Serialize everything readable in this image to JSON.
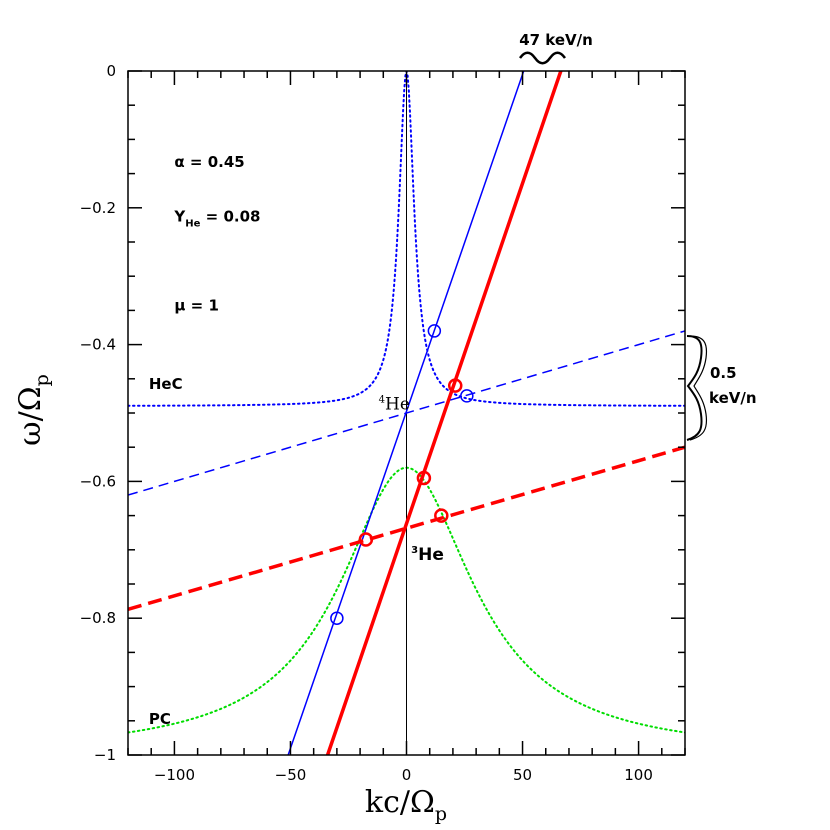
{
  "chart_data": {
    "type": "line",
    "title": "",
    "xlabel": "kc/Ω",
    "xlabel_sub": "p",
    "ylabel": "ω/Ω",
    "ylabel_sub": "p",
    "xlim": [
      -120,
      120
    ],
    "ylim": [
      -1,
      0
    ],
    "x_ticks": [
      -100,
      -50,
      0,
      50,
      100
    ],
    "x_tick_labels": [
      "−100",
      "−50",
      "0",
      "50",
      "100"
    ],
    "y_ticks": [
      0,
      -0.2,
      -0.4,
      -0.6,
      -0.8,
      -1
    ],
    "y_tick_labels": [
      "0",
      "−0.2",
      "−0.4",
      "−0.6",
      "−0.8",
      "−1"
    ],
    "grid": false,
    "dispersion_curves": [
      {
        "label": "HeC",
        "color": "#0000ff",
        "style": "dotted",
        "asymptote": -0.49,
        "peak": 0,
        "width": 4
      },
      {
        "label": "PC",
        "color": "#00dd00",
        "style": "dotted",
        "asymptote": -1.0,
        "peak": -0.58,
        "width": 35
      }
    ],
    "resonance_lines": [
      {
        "ion": "4He",
        "color": "#0000ff",
        "dash": "solid",
        "width": 1.5,
        "x": [
          -51,
          50.5
        ],
        "y": [
          -1.0,
          0.0
        ]
      },
      {
        "ion": "3He",
        "color": "#ff0000",
        "dash": "solid",
        "width": 3.5,
        "x": [
          -34,
          66.5
        ],
        "y": [
          -1.0,
          0.0
        ]
      },
      {
        "ion": "4He",
        "color": "#0000ff",
        "dash": "dashed",
        "width": 1.5,
        "x": [
          -120,
          120
        ],
        "y": [
          -0.62,
          -0.38
        ]
      },
      {
        "ion": "3He",
        "color": "#ff0000",
        "dash": "dashed",
        "width": 3.5,
        "x": [
          -120,
          120
        ],
        "y": [
          -0.787,
          -0.55
        ]
      }
    ],
    "vertical_line_x": 0,
    "intersection_points": [
      {
        "x": 12,
        "y": -0.38,
        "color": "#0000ff"
      },
      {
        "x": 26,
        "y": -0.475,
        "color": "#0000ff"
      },
      {
        "x": -30,
        "y": -0.8,
        "color": "#0000ff"
      },
      {
        "x": 21,
        "y": -0.46,
        "color": "#ff0000"
      },
      {
        "x": 7.5,
        "y": -0.595,
        "color": "#ff0000"
      },
      {
        "x": -17.5,
        "y": -0.685,
        "color": "#ff0000"
      },
      {
        "x": 15,
        "y": -0.65,
        "color": "#ff0000"
      }
    ],
    "annotations": {
      "alpha": {
        "text": "α = 0.45",
        "x": -100,
        "y": -0.14
      },
      "yhe": {
        "main": "Y",
        "sub": "He",
        "rest": " = 0.08",
        "x": -100,
        "y": -0.22
      },
      "mu": {
        "text": "μ = 1",
        "x": -100,
        "y": -0.35
      },
      "hec": {
        "text": "HeC",
        "x": -111,
        "y": -0.465
      },
      "pc": {
        "text": "PC",
        "x": -111,
        "y": -0.955
      },
      "he4": {
        "sup": "4",
        "main": "He",
        "x": -12,
        "y": -0.495,
        "color": "#0000ff"
      },
      "he3": {
        "sup": "3",
        "main": "He",
        "x": 2,
        "y": -0.715,
        "color": "#ff0000"
      },
      "top_label": "47  keV/n",
      "right_label_1": "0.5",
      "right_label_2": "keV/n"
    }
  }
}
